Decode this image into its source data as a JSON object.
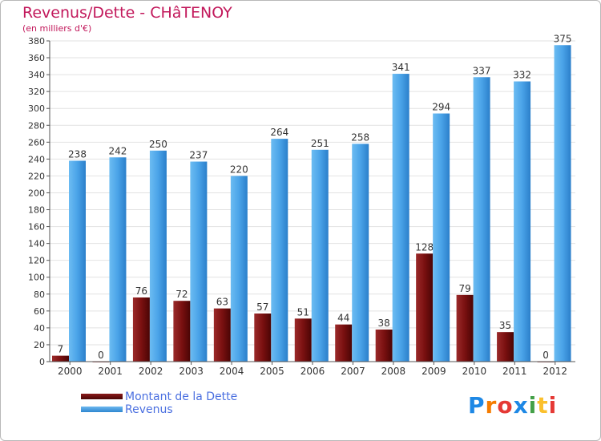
{
  "header": {
    "title": "Revenus/Dette - CHâTENOY",
    "subtitle": "(en milliers d'€)"
  },
  "legend": {
    "debt_label": "Montant de la Dette",
    "revenue_label": "Revenus"
  },
  "logo": {
    "text": "Proxiti",
    "letters": [
      "P",
      "r",
      "o",
      "x",
      "i",
      "t",
      "i"
    ],
    "letter_colors": [
      "#1e88e5",
      "#f57c00",
      "#e53935",
      "#1e88e5",
      "#43a047",
      "#fbc02d",
      "#e53935"
    ]
  },
  "colors": {
    "debt": "#7a1010",
    "revenue": "#4aa3e8",
    "title": "#c2185b",
    "legend_text": "#4a6fe0"
  },
  "chart_data": {
    "type": "bar",
    "title": "Revenus/Dette - CHâTENOY",
    "subtitle": "(en milliers d'€)",
    "xlabel": "",
    "ylabel": "",
    "ylim": [
      0,
      380
    ],
    "ytick_step": 20,
    "grid": true,
    "legend_position": "bottom-left",
    "categories": [
      "2000",
      "2001",
      "2002",
      "2003",
      "2004",
      "2005",
      "2006",
      "2007",
      "2008",
      "2009",
      "2010",
      "2011",
      "2012"
    ],
    "series": [
      {
        "name": "Montant de la Dette",
        "values": [
          7,
          0,
          76,
          72,
          63,
          57,
          51,
          44,
          38,
          128,
          79,
          35,
          0
        ]
      },
      {
        "name": "Revenus",
        "values": [
          238,
          242,
          250,
          237,
          220,
          264,
          251,
          258,
          341,
          294,
          337,
          332,
          375
        ]
      }
    ]
  }
}
